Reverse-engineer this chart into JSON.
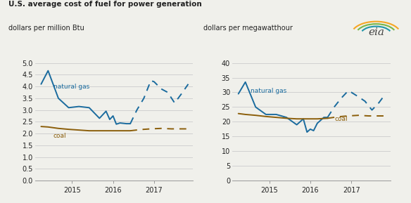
{
  "title": "U.S. average cost of fuel for power generation",
  "left_ylabel": "dollars per million Btu",
  "right_ylabel": "dollars per megawatthour",
  "bg_color": "#f0f0eb",
  "left_ng_solid_x": [
    2014.25,
    2014.42,
    2014.67,
    2014.92,
    2015.17,
    2015.42,
    2015.67,
    2015.83,
    2015.92,
    2016.0,
    2016.08,
    2016.17,
    2016.33,
    2016.42
  ],
  "left_ng_solid_y": [
    4.1,
    4.67,
    3.5,
    3.1,
    3.15,
    3.1,
    2.65,
    2.95,
    2.6,
    2.75,
    2.4,
    2.45,
    2.42,
    2.42
  ],
  "left_ng_dashed_x": [
    2016.42,
    2016.58,
    2016.75,
    2016.92,
    2017.0,
    2017.17,
    2017.33,
    2017.5,
    2017.67,
    2017.83
  ],
  "left_ng_dashed_y": [
    2.42,
    3.0,
    3.5,
    4.25,
    4.2,
    3.9,
    3.75,
    3.3,
    3.7,
    4.1
  ],
  "left_coal_solid_x": [
    2014.25,
    2014.42,
    2014.67,
    2014.92,
    2015.17,
    2015.42,
    2015.67,
    2015.92,
    2016.17,
    2016.42
  ],
  "left_coal_solid_y": [
    2.3,
    2.28,
    2.22,
    2.18,
    2.15,
    2.12,
    2.12,
    2.12,
    2.12,
    2.12
  ],
  "left_coal_dashed_x": [
    2016.42,
    2016.67,
    2016.92,
    2017.17,
    2017.42,
    2017.67,
    2017.83
  ],
  "left_coal_dashed_y": [
    2.12,
    2.17,
    2.2,
    2.22,
    2.2,
    2.2,
    2.2
  ],
  "right_ng_solid_x": [
    2014.25,
    2014.42,
    2014.67,
    2014.92,
    2015.17,
    2015.42,
    2015.67,
    2015.83,
    2015.92,
    2016.0,
    2016.08,
    2016.17,
    2016.33,
    2016.42
  ],
  "right_ng_solid_y": [
    29.5,
    33.5,
    25.0,
    22.5,
    22.5,
    21.5,
    19.0,
    21.0,
    16.5,
    17.5,
    17.0,
    19.5,
    21.5,
    21.5
  ],
  "right_ng_dashed_x": [
    2016.42,
    2016.58,
    2016.75,
    2016.92,
    2017.0,
    2017.17,
    2017.33,
    2017.5,
    2017.67,
    2017.83
  ],
  "right_ng_dashed_y": [
    21.5,
    25.0,
    28.0,
    30.5,
    30.0,
    28.5,
    27.0,
    24.0,
    26.5,
    29.5
  ],
  "right_coal_solid_x": [
    2014.25,
    2014.42,
    2014.67,
    2014.92,
    2015.17,
    2015.42,
    2015.67,
    2015.92,
    2016.17,
    2016.42
  ],
  "right_coal_solid_y": [
    22.8,
    22.5,
    22.2,
    21.8,
    21.5,
    21.2,
    21.0,
    21.0,
    21.0,
    21.2
  ],
  "right_coal_dashed_x": [
    2016.42,
    2016.67,
    2016.92,
    2017.17,
    2017.42,
    2017.67,
    2017.83
  ],
  "right_coal_dashed_y": [
    21.2,
    21.7,
    22.0,
    22.2,
    22.0,
    22.0,
    22.0
  ],
  "ng_color": "#1a6b9e",
  "coal_color": "#8B5E0A",
  "text_color": "#222222",
  "grid_color": "#cccccc",
  "left_ylim": [
    0.0,
    5.0
  ],
  "left_yticks": [
    0.0,
    0.5,
    1.0,
    1.5,
    2.0,
    2.5,
    3.0,
    3.5,
    4.0,
    4.5,
    5.0
  ],
  "left_ytick_labels": [
    "0.0",
    "0.5",
    "1.0",
    "1.5",
    "2.0",
    "2.5",
    "3.0",
    "3.5",
    "4.0",
    "4.5",
    "5.0"
  ],
  "right_ylim": [
    0,
    40
  ],
  "right_yticks": [
    0,
    5,
    10,
    15,
    20,
    25,
    30,
    35,
    40
  ],
  "right_ytick_labels": [
    "0",
    "5",
    "10",
    "15",
    "20",
    "25",
    "30",
    "35",
    "40"
  ],
  "xlim": [
    2014.1,
    2017.95
  ],
  "xticks": [
    2015.0,
    2016.0,
    2017.0
  ],
  "xtick_labels": [
    "2015",
    "2016",
    "2017"
  ]
}
